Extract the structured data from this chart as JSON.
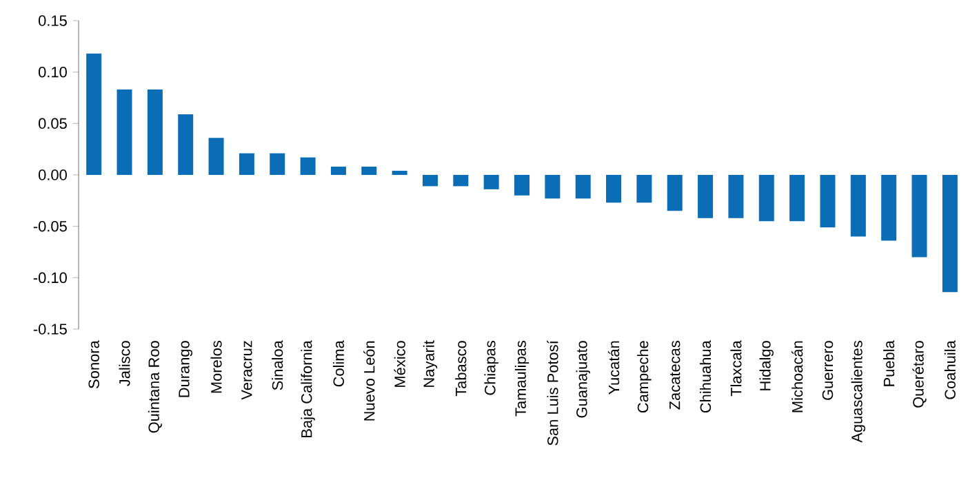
{
  "chart_data": {
    "type": "bar",
    "categories": [
      "Sonora",
      "Jalisco",
      "Quintana Roo",
      "Durango",
      "Morelos",
      "Veracruz",
      "Sinaloa",
      "Baja California",
      "Colima",
      "Nuevo León",
      "México",
      "Nayarit",
      "Tabasco",
      "Chiapas",
      "Tamaulipas",
      "San Luis Potosí",
      "Guanajuato",
      "Yucatán",
      "Campeche",
      "Zacatecas",
      "Chihuahua",
      "Tlaxcala",
      "Hidalgo",
      "Michoacán",
      "Guerrero",
      "Aguascalientes",
      "Puebla",
      "Querétaro",
      "Coahuila"
    ],
    "values": [
      0.118,
      0.083,
      0.083,
      0.059,
      0.036,
      0.021,
      0.021,
      0.017,
      0.008,
      0.008,
      0.004,
      -0.011,
      -0.011,
      -0.014,
      -0.02,
      -0.023,
      -0.023,
      -0.027,
      -0.027,
      -0.035,
      -0.042,
      -0.042,
      -0.045,
      -0.045,
      -0.051,
      -0.06,
      -0.064,
      -0.08,
      -0.114
    ],
    "color": "#0a6db5",
    "ylim": [
      -0.15,
      0.15
    ],
    "yticks": [
      {
        "value": -0.15,
        "label": "-0.15"
      },
      {
        "value": -0.1,
        "label": "-0.10"
      },
      {
        "value": -0.05,
        "label": "-0.05"
      },
      {
        "value": 0,
        "label": "0.00"
      },
      {
        "value": 0.05,
        "label": "0.05"
      },
      {
        "value": 0.1,
        "label": "0.10"
      },
      {
        "value": 0.15,
        "label": "0.15"
      }
    ],
    "grid": false
  }
}
